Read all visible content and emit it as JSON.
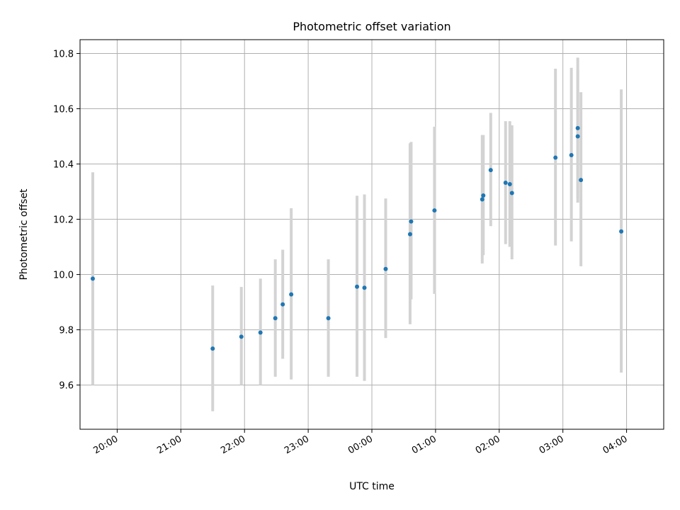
{
  "chart_data": {
    "type": "scatter",
    "title": "Photometric offset variation",
    "xlabel": "UTC time",
    "ylabel": "Photometric offset",
    "x_tick_labels": [
      "20:00",
      "21:00",
      "22:00",
      "23:00",
      "00:00",
      "01:00",
      "02:00",
      "03:00",
      "04:00"
    ],
    "y_tick_labels": [
      "9.6",
      "9.8",
      "10.0",
      "10.2",
      "10.4",
      "10.6",
      "10.8"
    ],
    "xlim": [
      "19:25",
      "04:35"
    ],
    "ylim": [
      9.44,
      10.85
    ],
    "grid": true,
    "errorbar_color": "#d3d3d3",
    "point_color": "#1f77b4",
    "points": [
      {
        "t": "19:37",
        "y": 9.985,
        "lo": 9.6,
        "hi": 10.37
      },
      {
        "t": "21:30",
        "y": 9.732,
        "lo": 9.505,
        "hi": 9.96
      },
      {
        "t": "21:57",
        "y": 9.775,
        "lo": 9.6,
        "hi": 9.955
      },
      {
        "t": "22:15",
        "y": 9.79,
        "lo": 9.6,
        "hi": 9.985
      },
      {
        "t": "22:29",
        "y": 9.842,
        "lo": 9.63,
        "hi": 10.055
      },
      {
        "t": "22:36",
        "y": 9.892,
        "lo": 9.695,
        "hi": 10.09
      },
      {
        "t": "22:44",
        "y": 9.928,
        "lo": 9.62,
        "hi": 10.24
      },
      {
        "t": "23:19",
        "y": 9.842,
        "lo": 9.63,
        "hi": 10.055
      },
      {
        "t": "23:46",
        "y": 9.956,
        "lo": 9.63,
        "hi": 10.285
      },
      {
        "t": "23:53",
        "y": 9.952,
        "lo": 9.615,
        "hi": 10.29
      },
      {
        "t": "00:13",
        "y": 10.02,
        "lo": 9.77,
        "hi": 10.275
      },
      {
        "t": "00:36",
        "y": 10.146,
        "lo": 9.82,
        "hi": 10.475
      },
      {
        "t": "00:37",
        "y": 10.192,
        "lo": 9.91,
        "hi": 10.48
      },
      {
        "t": "00:59",
        "y": 10.232,
        "lo": 9.93,
        "hi": 10.535
      },
      {
        "t": "01:44",
        "y": 10.272,
        "lo": 10.04,
        "hi": 10.505
      },
      {
        "t": "01:45",
        "y": 10.286,
        "lo": 10.07,
        "hi": 10.505
      },
      {
        "t": "01:52",
        "y": 10.378,
        "lo": 10.175,
        "hi": 10.585
      },
      {
        "t": "02:06",
        "y": 10.332,
        "lo": 10.11,
        "hi": 10.555
      },
      {
        "t": "02:10",
        "y": 10.327,
        "lo": 10.1,
        "hi": 10.555
      },
      {
        "t": "02:12",
        "y": 10.295,
        "lo": 10.055,
        "hi": 10.54
      },
      {
        "t": "02:53",
        "y": 10.423,
        "lo": 10.105,
        "hi": 10.745
      },
      {
        "t": "03:08",
        "y": 10.432,
        "lo": 10.12,
        "hi": 10.748
      },
      {
        "t": "03:14",
        "y": 10.53,
        "lo": 10.275,
        "hi": 10.785
      },
      {
        "t": "03:14",
        "y": 10.5,
        "lo": 10.26,
        "hi": 10.74
      },
      {
        "t": "03:17",
        "y": 10.342,
        "lo": 10.03,
        "hi": 10.66
      },
      {
        "t": "03:55",
        "y": 10.156,
        "lo": 9.645,
        "hi": 10.67
      }
    ]
  }
}
